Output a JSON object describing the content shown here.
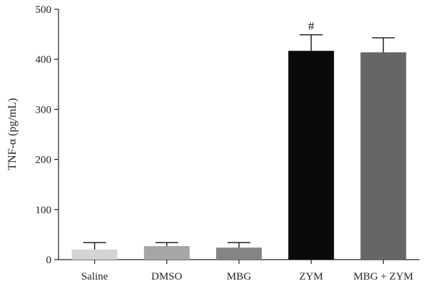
{
  "chart_data": {
    "type": "bar",
    "categories": [
      "Saline",
      "DMSO",
      "MBG",
      "ZYM",
      "MBG + ZYM"
    ],
    "values": [
      20,
      27,
      24,
      417,
      414
    ],
    "error": [
      14,
      7,
      10,
      32,
      29
    ],
    "colors": [
      "#d4d4d4",
      "#a6a6a6",
      "#858585",
      "#0a0a0a",
      "#666666"
    ],
    "annotations": [
      {
        "category": "ZYM",
        "text": "#"
      }
    ],
    "title": "",
    "xlabel": "",
    "ylabel": "TNF-α (pg/mL)",
    "ylim": [
      0,
      500
    ],
    "yticks": [
      0,
      100,
      200,
      300,
      400,
      500
    ],
    "grid": false,
    "legend": "none"
  }
}
